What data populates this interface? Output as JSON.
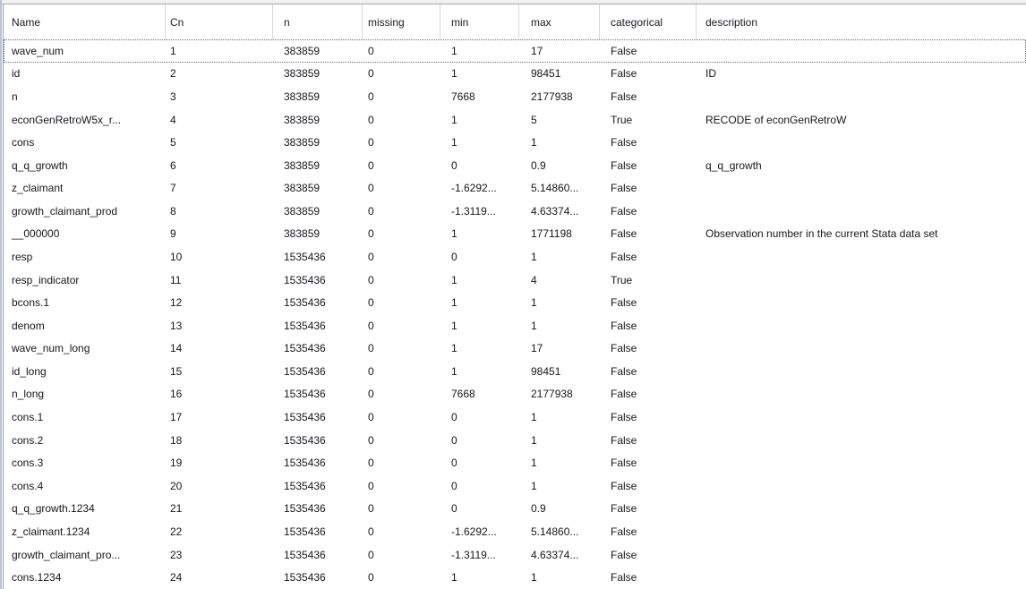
{
  "table": {
    "columns": [
      "Name",
      "Cn",
      "n",
      "missing",
      "min",
      "max",
      "categorical",
      "description"
    ],
    "focused_row": "wave_num",
    "focused_row_index": 0,
    "rows": [
      {
        "name": "wave_num",
        "cn": "1",
        "n": "383859",
        "missing": "0",
        "min": "1",
        "max": "17",
        "categorical": "False",
        "description": ""
      },
      {
        "name": "id",
        "cn": "2",
        "n": "383859",
        "missing": "0",
        "min": "1",
        "max": "98451",
        "categorical": "False",
        "description": "ID"
      },
      {
        "name": "n",
        "cn": "3",
        "n": "383859",
        "missing": "0",
        "min": "7668",
        "max": "2177938",
        "categorical": "False",
        "description": ""
      },
      {
        "name": "econGenRetroW5x_r...",
        "cn": "4",
        "n": "383859",
        "missing": "0",
        "min": "1",
        "max": "5",
        "categorical": "True",
        "description": "RECODE of econGenRetroW"
      },
      {
        "name": "cons",
        "cn": "5",
        "n": "383859",
        "missing": "0",
        "min": "1",
        "max": "1",
        "categorical": "False",
        "description": ""
      },
      {
        "name": "q_q_growth",
        "cn": "6",
        "n": "383859",
        "missing": "0",
        "min": "0",
        "max": "0.9",
        "categorical": "False",
        "description": "q_q_growth"
      },
      {
        "name": "z_claimant",
        "cn": "7",
        "n": "383859",
        "missing": "0",
        "min": "-1.6292...",
        "max": "5.14860...",
        "categorical": "False",
        "description": ""
      },
      {
        "name": "growth_claimant_prod",
        "cn": "8",
        "n": "383859",
        "missing": "0",
        "min": "-1.3119...",
        "max": "4.63374...",
        "categorical": "False",
        "description": ""
      },
      {
        "name": "__000000",
        "cn": "9",
        "n": "383859",
        "missing": "0",
        "min": "1",
        "max": "1771198",
        "categorical": "False",
        "description": "Observation number in the current Stata data set"
      },
      {
        "name": "resp",
        "cn": "10",
        "n": "1535436",
        "missing": "0",
        "min": "0",
        "max": "1",
        "categorical": "False",
        "description": ""
      },
      {
        "name": "resp_indicator",
        "cn": "11",
        "n": "1535436",
        "missing": "0",
        "min": "1",
        "max": "4",
        "categorical": "True",
        "description": ""
      },
      {
        "name": "bcons.1",
        "cn": "12",
        "n": "1535436",
        "missing": "0",
        "min": "1",
        "max": "1",
        "categorical": "False",
        "description": ""
      },
      {
        "name": "denom",
        "cn": "13",
        "n": "1535436",
        "missing": "0",
        "min": "1",
        "max": "1",
        "categorical": "False",
        "description": ""
      },
      {
        "name": "wave_num_long",
        "cn": "14",
        "n": "1535436",
        "missing": "0",
        "min": "1",
        "max": "17",
        "categorical": "False",
        "description": ""
      },
      {
        "name": "id_long",
        "cn": "15",
        "n": "1535436",
        "missing": "0",
        "min": "1",
        "max": "98451",
        "categorical": "False",
        "description": ""
      },
      {
        "name": "n_long",
        "cn": "16",
        "n": "1535436",
        "missing": "0",
        "min": "7668",
        "max": "2177938",
        "categorical": "False",
        "description": ""
      },
      {
        "name": "cons.1",
        "cn": "17",
        "n": "1535436",
        "missing": "0",
        "min": "0",
        "max": "1",
        "categorical": "False",
        "description": ""
      },
      {
        "name": "cons.2",
        "cn": "18",
        "n": "1535436",
        "missing": "0",
        "min": "0",
        "max": "1",
        "categorical": "False",
        "description": ""
      },
      {
        "name": "cons.3",
        "cn": "19",
        "n": "1535436",
        "missing": "0",
        "min": "0",
        "max": "1",
        "categorical": "False",
        "description": ""
      },
      {
        "name": "cons.4",
        "cn": "20",
        "n": "1535436",
        "missing": "0",
        "min": "0",
        "max": "1",
        "categorical": "False",
        "description": ""
      },
      {
        "name": "q_q_growth.1234",
        "cn": "21",
        "n": "1535436",
        "missing": "0",
        "min": "0",
        "max": "0.9",
        "categorical": "False",
        "description": ""
      },
      {
        "name": "z_claimant.1234",
        "cn": "22",
        "n": "1535436",
        "missing": "0",
        "min": "-1.6292...",
        "max": "5.14860...",
        "categorical": "False",
        "description": ""
      },
      {
        "name": "growth_claimant_pro...",
        "cn": "23",
        "n": "1535436",
        "missing": "0",
        "min": "-1.3119...",
        "max": "4.63374...",
        "categorical": "False",
        "description": ""
      },
      {
        "name": "cons.1234",
        "cn": "24",
        "n": "1535436",
        "missing": "0",
        "min": "1",
        "max": "1",
        "categorical": "False",
        "description": ""
      }
    ]
  }
}
